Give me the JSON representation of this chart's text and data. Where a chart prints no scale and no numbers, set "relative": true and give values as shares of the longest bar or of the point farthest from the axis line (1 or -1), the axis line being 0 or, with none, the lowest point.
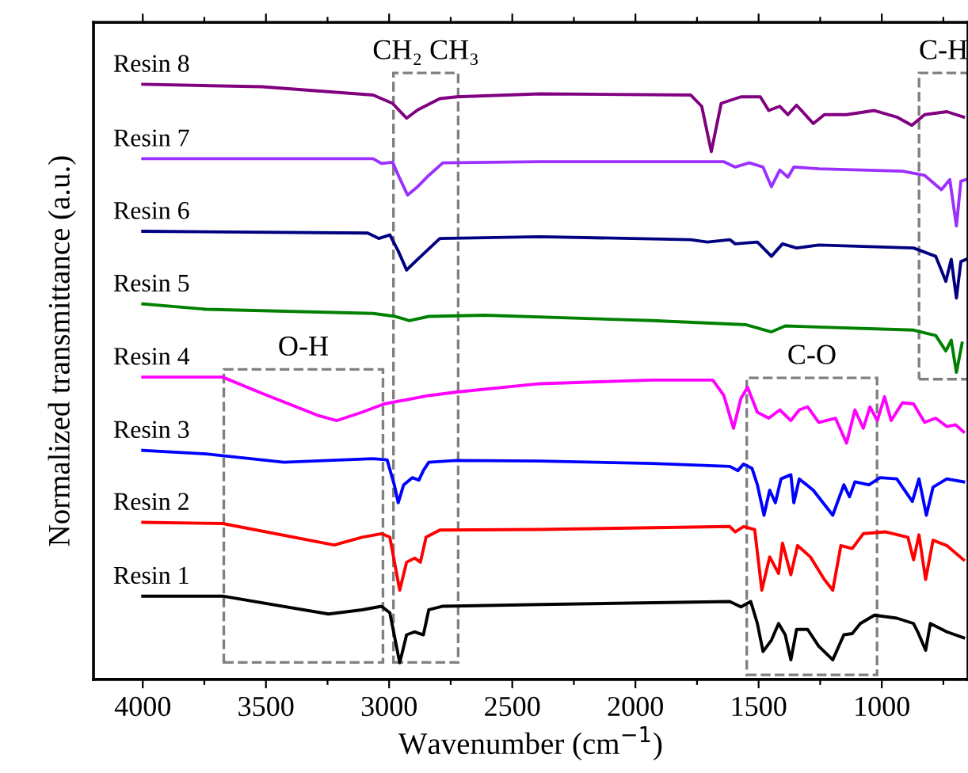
{
  "chart_data": {
    "type": "line",
    "relative": true,
    "xlabel": "Wavenumber (cm$^{−1}$)",
    "ylabel": "Normalized transmittance (a.u.)",
    "xlim": [
      4200,
      650
    ],
    "xticks": [
      4000,
      {
        "value": 3750,
        "label": null
      },
      3500,
      {
        "value": 3250,
        "label": null
      },
      3000,
      {
        "value": 2750,
        "label": null
      },
      2500,
      {
        "value": 2250,
        "label": null
      },
      2000,
      {
        "value": 1750,
        "label": null
      },
      1500,
      {
        "value": 1250,
        "label": null
      },
      1000,
      {
        "value": 750,
        "label": null
      }
    ],
    "grid": false,
    "legend": false,
    "line_style": "solid",
    "marker": "none",
    "annotations": [
      "O-H",
      "CH₂ CH₃",
      "C-O",
      "C-H"
    ],
    "series": [
      {
        "name": "Resin 1",
        "color": "#000000",
        "x": [
          4000,
          3676,
          3246,
          3110,
          3031,
          2997,
          2957,
          2929,
          2896,
          2861,
          2839,
          2782,
          2387,
          1617,
          1572,
          1532,
          1505,
          1482,
          1448,
          1419,
          1392,
          1369,
          1346,
          1301,
          1256,
          1199,
          1154,
          1120,
          1087,
          1030,
          939,
          871,
          854,
          822,
          803,
          736,
          668
        ],
        "values": [
          0.14,
          0.14,
          0.11,
          0.117,
          0.123,
          0.112,
          0.028,
          0.075,
          0.08,
          0.075,
          0.117,
          0.123,
          0.126,
          0.131,
          0.122,
          0.131,
          0.094,
          0.047,
          0.066,
          0.094,
          0.075,
          0.033,
          0.084,
          0.084,
          0.056,
          0.033,
          0.075,
          0.077,
          0.094,
          0.108,
          0.103,
          0.094,
          0.08,
          0.049,
          0.094,
          0.08,
          0.07
        ]
      },
      {
        "name": "Resin 2",
        "color": "#ff0000",
        "x": [
          4000,
          3676,
          3223,
          3110,
          3031,
          2997,
          2957,
          2929,
          2896,
          2873,
          2850,
          2794,
          2387,
          1617,
          1595,
          1561,
          1516,
          1487,
          1455,
          1419,
          1403,
          1369,
          1342,
          1290,
          1233,
          1199,
          1166,
          1120,
          1075,
          984,
          894,
          871,
          849,
          822,
          792,
          736,
          668
        ],
        "values": [
          0.264,
          0.262,
          0.226,
          0.239,
          0.245,
          0.239,
          0.15,
          0.197,
          0.204,
          0.197,
          0.239,
          0.251,
          0.252,
          0.257,
          0.248,
          0.257,
          0.252,
          0.15,
          0.206,
          0.178,
          0.229,
          0.176,
          0.225,
          0.206,
          0.168,
          0.15,
          0.225,
          0.22,
          0.245,
          0.248,
          0.239,
          0.201,
          0.243,
          0.168,
          0.234,
          0.225,
          0.201
        ]
      },
      {
        "name": "Resin 3",
        "color": "#0000ff",
        "x": [
          4000,
          3743,
          3427,
          3065,
          3008,
          2979,
          2963,
          2941,
          2906,
          2879,
          2861,
          2839,
          2726,
          2387,
          1934,
          1617,
          1584,
          1561,
          1527,
          1505,
          1478,
          1455,
          1432,
          1409,
          1369,
          1357,
          1335,
          1278,
          1199,
          1154,
          1131,
          1109,
          1052,
          1007,
          939,
          876,
          849,
          819,
          792,
          736,
          668
        ],
        "values": [
          0.385,
          0.379,
          0.365,
          0.371,
          0.369,
          0.327,
          0.297,
          0.327,
          0.339,
          0.335,
          0.351,
          0.365,
          0.368,
          0.367,
          0.363,
          0.358,
          0.351,
          0.362,
          0.355,
          0.327,
          0.276,
          0.318,
          0.297,
          0.337,
          0.344,
          0.297,
          0.337,
          0.318,
          0.276,
          0.327,
          0.307,
          0.332,
          0.327,
          0.339,
          0.337,
          0.299,
          0.337,
          0.276,
          0.323,
          0.337,
          0.332
        ]
      },
      {
        "name": "Resin 4",
        "color": "#ff00ff",
        "x": [
          4000,
          3676,
          3517,
          3291,
          3212,
          3110,
          3020,
          2839,
          2726,
          2387,
          1934,
          1686,
          1641,
          1602,
          1572,
          1545,
          1505,
          1459,
          1414,
          1369,
          1335,
          1301,
          1256,
          1188,
          1143,
          1109,
          1075,
          1048,
          1018,
          989,
          962,
          916,
          871,
          826,
          781,
          736,
          701,
          668
        ],
        "values": [
          0.508,
          0.508,
          0.481,
          0.444,
          0.435,
          0.449,
          0.463,
          0.477,
          0.483,
          0.497,
          0.503,
          0.503,
          0.477,
          0.422,
          0.472,
          0.491,
          0.449,
          0.439,
          0.453,
          0.435,
          0.453,
          0.458,
          0.432,
          0.439,
          0.397,
          0.453,
          0.422,
          0.458,
          0.435,
          0.475,
          0.435,
          0.465,
          0.463,
          0.432,
          0.439,
          0.425,
          0.428,
          0.416
        ]
      },
      {
        "name": "Resin 5",
        "color": "#008000",
        "x": [
          4000,
          3743,
          3065,
          2975,
          2918,
          2839,
          2612,
          1934,
          1550,
          1448,
          1392,
          871,
          781,
          740,
          718,
          697,
          674
        ],
        "values": [
          0.631,
          0.622,
          0.615,
          0.61,
          0.603,
          0.61,
          0.612,
          0.603,
          0.596,
          0.584,
          0.594,
          0.587,
          0.578,
          0.552,
          0.57,
          0.516,
          0.565
        ]
      },
      {
        "name": "Resin 6",
        "color": "#000080",
        "x": [
          4000,
          3087,
          3042,
          2997,
          2963,
          2929,
          2884,
          2794,
          2387,
          1776,
          1708,
          1617,
          1595,
          1505,
          1448,
          1403,
          1346,
          1256,
          871,
          781,
          740,
          718,
          697,
          679,
          657
        ],
        "values": [
          0.753,
          0.75,
          0.741,
          0.747,
          0.72,
          0.688,
          0.706,
          0.741,
          0.744,
          0.739,
          0.735,
          0.739,
          0.732,
          0.735,
          0.711,
          0.732,
          0.725,
          0.73,
          0.725,
          0.711,
          0.669,
          0.706,
          0.641,
          0.702,
          0.706
        ]
      },
      {
        "name": "Resin 7",
        "color": "#9b30ff",
        "x": [
          4000,
          3065,
          3031,
          2986,
          2957,
          2925,
          2884,
          2839,
          2782,
          2387,
          1641,
          1595,
          1538,
          1482,
          1448,
          1414,
          1381,
          1357,
          1256,
          916,
          826,
          758,
          724,
          697,
          679,
          657
        ],
        "values": [
          0.875,
          0.875,
          0.867,
          0.869,
          0.842,
          0.814,
          0.828,
          0.847,
          0.868,
          0.87,
          0.87,
          0.861,
          0.868,
          0.861,
          0.828,
          0.856,
          0.844,
          0.861,
          0.858,
          0.854,
          0.847,
          0.823,
          0.84,
          0.762,
          0.837,
          0.84
        ]
      },
      {
        "name": "Resin 8",
        "color": "#800080",
        "x": [
          4000,
          3517,
          3065,
          2986,
          2929,
          2884,
          2794,
          2726,
          2387,
          1776,
          1731,
          1692,
          1652,
          1572,
          1493,
          1459,
          1414,
          1381,
          1346,
          1278,
          1233,
          1143,
          1030,
          939,
          878,
          826,
          736,
          668
        ],
        "values": [
          1.0,
          0.996,
          0.982,
          0.968,
          0.943,
          0.957,
          0.976,
          0.979,
          0.984,
          0.982,
          0.963,
          0.887,
          0.968,
          0.979,
          0.979,
          0.956,
          0.963,
          0.949,
          0.965,
          0.934,
          0.949,
          0.949,
          0.956,
          0.945,
          0.931,
          0.949,
          0.954,
          0.945
        ]
      }
    ]
  }
}
